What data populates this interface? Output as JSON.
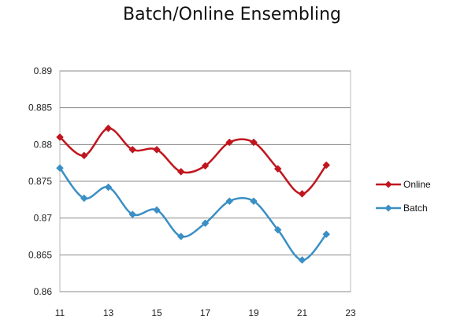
{
  "chart_data": {
    "type": "line",
    "title": "Batch/Online Ensembling",
    "xlabel": "",
    "ylabel": "",
    "xlim": [
      11,
      23
    ],
    "ylim": [
      0.86,
      0.89
    ],
    "xticks": [
      "11",
      "13",
      "15",
      "17",
      "19",
      "21",
      "23"
    ],
    "yticks": [
      "0.86",
      "0.865",
      "0.87",
      "0.875",
      "0.88",
      "0.885",
      "0.89"
    ],
    "grid": "horizontal",
    "legend_position": "right",
    "x": [
      11,
      12,
      13,
      14,
      15,
      16,
      17,
      18,
      19,
      20,
      21,
      22
    ],
    "series": [
      {
        "name": "Online",
        "color": "#c0161e",
        "marker": "diamond",
        "values": [
          0.881,
          0.8785,
          0.8822,
          0.8793,
          0.8793,
          0.8763,
          0.8771,
          0.8803,
          0.8803,
          0.8767,
          0.8733,
          0.8772
        ]
      },
      {
        "name": "Batch",
        "color": "#3a8fc4",
        "marker": "diamond",
        "values": [
          0.8768,
          0.8727,
          0.8742,
          0.8705,
          0.8711,
          0.8675,
          0.8693,
          0.8723,
          0.8723,
          0.8684,
          0.8643,
          0.8678
        ]
      }
    ]
  }
}
